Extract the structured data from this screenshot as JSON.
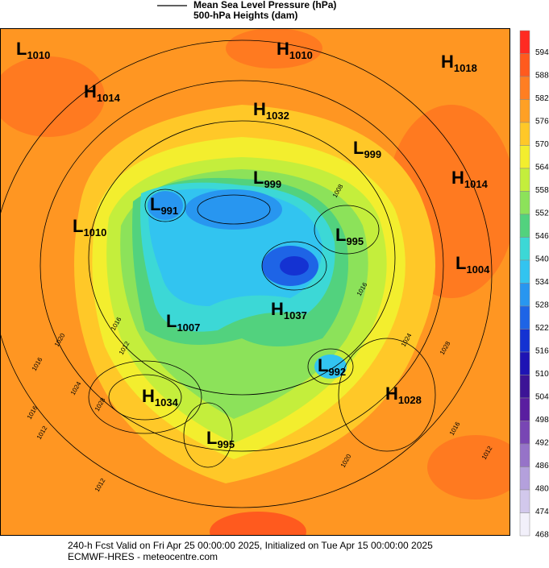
{
  "legend": {
    "items": [
      "Mean Sea Level Pressure (hPa)",
      "500-hPa Heights (dam)"
    ]
  },
  "colorbar": {
    "ticks": [
      594,
      588,
      582,
      576,
      570,
      564,
      558,
      552,
      546,
      540,
      534,
      528,
      522,
      516,
      510,
      504,
      498,
      492,
      486,
      480,
      474,
      468
    ],
    "colors": [
      "#ff2a22",
      "#ff5a1e",
      "#ff7e22",
      "#ffa024",
      "#ffc828",
      "#f3ee2e",
      "#c4ee3c",
      "#8ce25a",
      "#52d27e",
      "#3cd8d6",
      "#32c4f0",
      "#2896f0",
      "#1e64e6",
      "#1432d2",
      "#1e14b4",
      "#3c1496",
      "#5a1ea0",
      "#7846b4",
      "#9673c8",
      "#b4a0dc",
      "#d2c8ec",
      "#f2f0fa"
    ]
  },
  "centers": [
    {
      "kind": "L",
      "value": "1010"
    },
    {
      "kind": "H",
      "value": "1010"
    },
    {
      "kind": "H",
      "value": "1018"
    },
    {
      "kind": "H",
      "value": "1014"
    },
    {
      "kind": "H",
      "value": "1032"
    },
    {
      "kind": "L",
      "value": "999"
    },
    {
      "kind": "L",
      "value": "999"
    },
    {
      "kind": "H",
      "value": "1014"
    },
    {
      "kind": "L",
      "value": "991"
    },
    {
      "kind": "L",
      "value": "1010"
    },
    {
      "kind": "L",
      "value": "995"
    },
    {
      "kind": "L",
      "value": "1004"
    },
    {
      "kind": "H",
      "value": "1037"
    },
    {
      "kind": "L",
      "value": "1007"
    },
    {
      "kind": "L",
      "value": "992"
    },
    {
      "kind": "H",
      "value": "1028"
    },
    {
      "kind": "H",
      "value": "1034"
    },
    {
      "kind": "L",
      "value": "995"
    }
  ],
  "contour_labels": [
    "1016",
    "1012",
    "1020",
    "1016",
    "1024",
    "1028",
    "1016",
    "1012",
    "1020",
    "1024",
    "1028",
    "1016",
    "1012",
    "1008",
    "1016",
    "1012"
  ],
  "footer": {
    "line1": "240-h Fcst Valid on Fri Apr 25 00:00:00 2025, Initialized on Tue Apr 15 00:00:00 2025",
    "line2": "ECMWF-HRES  - meteocentre.com"
  }
}
